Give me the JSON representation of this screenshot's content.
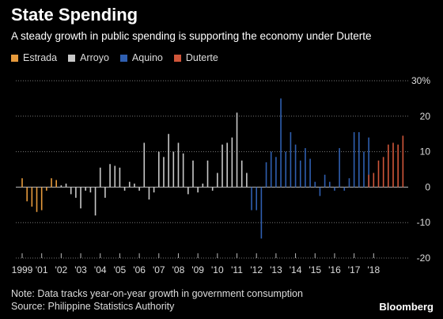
{
  "header": {
    "title": "State Spending",
    "subtitle": "A steady growth in public spending is supporting the economy under Duterte"
  },
  "footer": {
    "note": "Note: Data tracks year-on-year growth in government consumption",
    "source": "Source: Philippine Statistics Authority",
    "brand": "Bloomberg"
  },
  "chart_data": {
    "type": "bar",
    "title": "State Spending",
    "subtitle": "A steady growth in public spending is supporting the economy under Duterte",
    "xlabel": "",
    "ylabel": "",
    "ylim": [
      -20,
      30
    ],
    "yticks": [
      30,
      20,
      10,
      0,
      -10,
      -20
    ],
    "ytick_labels": [
      "30%",
      "20",
      "10",
      "0",
      "-10",
      "-20"
    ],
    "xticks": [
      "1999",
      "'01",
      "'02",
      "'03",
      "'04",
      "'05",
      "'06",
      "'07",
      "'08",
      "'09",
      "'10",
      "'11",
      "'12",
      "'13",
      "'14",
      "'15",
      "'16",
      "'17",
      "'18"
    ],
    "grid": true,
    "legend_position": "top-left",
    "series": [
      {
        "name": "Estrada",
        "color": "#e69a3c",
        "start": 1999.0,
        "values": [
          2.5,
          -4,
          -5.5,
          -7,
          -6.5,
          -1,
          2.5,
          2
        ]
      },
      {
        "name": "Arroyo",
        "color": "#c8c8c8",
        "start": 2001.0,
        "values": [
          0.5,
          1,
          -2,
          -3,
          -6,
          -1,
          -1.5,
          -8,
          5.5,
          -3,
          6.5,
          6,
          5.5,
          -1,
          1.5,
          1,
          -1,
          12.5,
          -3.5,
          -1.5,
          10,
          8.5,
          15,
          10,
          12.5,
          9.5,
          -2,
          7.5,
          -1.5,
          1,
          7.5,
          -1,
          4,
          12,
          12.5,
          14,
          21,
          7.5,
          4
        ]
      },
      {
        "name": "Aquino",
        "color": "#2f5fb0",
        "start": 2010.75,
        "values": [
          -6.5,
          -6.5,
          -14.5,
          7,
          10,
          8.5,
          25,
          10,
          15.5,
          12,
          7.5,
          11,
          8,
          1.5,
          -2.5,
          3.5,
          1.5,
          -1,
          11,
          -1,
          2.5,
          15.5,
          15.5,
          10,
          14
        ]
      },
      {
        "name": "Duterte",
        "color": "#d0563a",
        "start": 2016.75,
        "values": [
          3.5,
          4,
          7.5,
          8.5,
          12,
          12.5,
          12,
          14.5
        ]
      }
    ]
  }
}
